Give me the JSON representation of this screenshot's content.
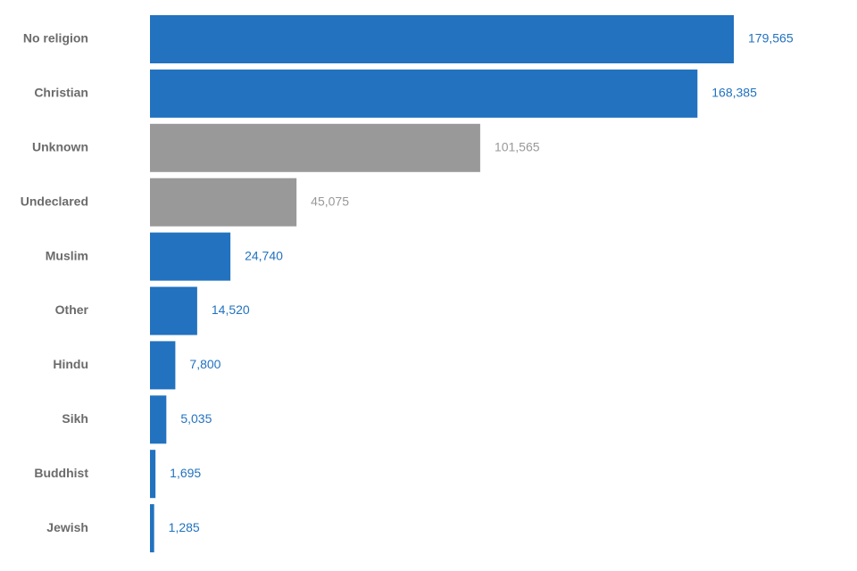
{
  "chart_data": {
    "type": "bar",
    "orientation": "horizontal",
    "categories": [
      "No religion",
      "Christian",
      "Unknown",
      "Undeclared",
      "Muslim",
      "Other",
      "Hindu",
      "Sikh",
      "Buddhist",
      "Jewish"
    ],
    "values": [
      179565,
      168385,
      101565,
      45075,
      24740,
      14520,
      7800,
      5035,
      1695,
      1285
    ],
    "value_labels": [
      "179,565",
      "168,385",
      "101,565",
      "45,075",
      "24,740",
      "14,520",
      "7,800",
      "5,035",
      "1,695",
      "1,285"
    ],
    "series_kind": [
      "stated",
      "stated",
      "missing",
      "missing",
      "stated",
      "stated",
      "stated",
      "stated",
      "stated",
      "stated"
    ],
    "colors": {
      "stated": "#2272bf",
      "missing": "#999999"
    },
    "xlim": [
      0,
      179565
    ],
    "grid": false,
    "legend": "none",
    "title": "",
    "xlabel": "",
    "ylabel": ""
  }
}
